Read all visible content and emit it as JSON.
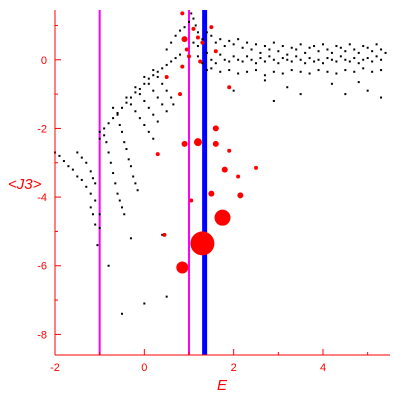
{
  "chart_data": {
    "type": "scatter",
    "xlabel": "E",
    "ylabel": "<J3>",
    "xlim": [
      -2,
      5.5
    ],
    "ylim": [
      -8.6,
      1.45
    ],
    "x_ticks": [
      -2,
      0,
      2,
      4
    ],
    "y_ticks": [
      -8,
      -6,
      -4,
      -2,
      0
    ],
    "grid": false,
    "axis_color": "#ff0000",
    "vertical_lines": [
      {
        "x": -1.0,
        "color": "#ff00ff"
      },
      {
        "x": 1.0,
        "color": "#ff00ff"
      },
      {
        "x": 1.35,
        "color": "#0000ff"
      }
    ],
    "series": [
      {
        "color": "#000000",
        "style": "dots",
        "points": [
          [
            -2.0,
            -2.7
          ],
          [
            -1.9,
            -2.8
          ],
          [
            -1.8,
            -2.95
          ],
          [
            -1.7,
            -3.1
          ],
          [
            -1.6,
            -3.2
          ],
          [
            -1.5,
            -3.4
          ],
          [
            -1.4,
            -3.5
          ],
          [
            -1.3,
            -3.7
          ],
          [
            -1.2,
            -3.9
          ],
          [
            -1.1,
            -4.1
          ],
          [
            -1.0,
            -4.5
          ],
          [
            -1.0,
            -4.9
          ],
          [
            -1.05,
            -5.4
          ],
          [
            -1.5,
            -2.7
          ],
          [
            -1.4,
            -2.85
          ],
          [
            -1.3,
            -3.0
          ],
          [
            -1.2,
            -3.25
          ],
          [
            -1.15,
            -3.45
          ],
          [
            -1.1,
            -3.6
          ],
          [
            -1.2,
            -4.3
          ],
          [
            -1.15,
            -4.5
          ],
          [
            -1.1,
            -4.8
          ],
          [
            -1.0,
            -2.1
          ],
          [
            -1.0,
            -2.3
          ],
          [
            -0.9,
            -2.2
          ],
          [
            -0.85,
            -2.4
          ],
          [
            -0.8,
            -2.7
          ],
          [
            -0.75,
            -3.0
          ],
          [
            -0.7,
            -3.3
          ],
          [
            -0.65,
            -3.6
          ],
          [
            -0.6,
            -3.9
          ],
          [
            -0.55,
            -4.1
          ],
          [
            -0.5,
            -4.3
          ],
          [
            -0.45,
            -4.5
          ],
          [
            -0.9,
            -2.0
          ],
          [
            -0.8,
            -1.85
          ],
          [
            -0.7,
            -1.7
          ],
          [
            -0.6,
            -1.55
          ],
          [
            -0.5,
            -1.4
          ],
          [
            -0.4,
            -1.25
          ],
          [
            -0.3,
            -1.1
          ],
          [
            -0.2,
            -0.95
          ],
          [
            -0.1,
            -0.85
          ],
          [
            0.0,
            -0.7
          ],
          [
            0.1,
            -0.55
          ],
          [
            0.2,
            -0.45
          ],
          [
            0.3,
            -0.35
          ],
          [
            0.4,
            -0.25
          ],
          [
            0.5,
            -0.15
          ],
          [
            0.6,
            -0.05
          ],
          [
            0.7,
            0.05
          ],
          [
            0.8,
            0.15
          ],
          [
            -0.7,
            -1.4
          ],
          [
            -0.6,
            -1.6
          ],
          [
            -0.55,
            -1.9
          ],
          [
            -0.5,
            -2.1
          ],
          [
            -0.45,
            -2.4
          ],
          [
            -0.4,
            -2.6
          ],
          [
            -0.35,
            -2.9
          ],
          [
            -0.3,
            -3.1
          ],
          [
            -0.25,
            -3.4
          ],
          [
            -0.2,
            -3.6
          ],
          [
            -0.15,
            -3.8
          ],
          [
            -0.4,
            -1.1
          ],
          [
            -0.3,
            -1.3
          ],
          [
            -0.2,
            -1.5
          ],
          [
            -0.1,
            -1.7
          ],
          [
            0.0,
            -1.9
          ],
          [
            0.1,
            -2.1
          ],
          [
            0.2,
            -2.3
          ],
          [
            -0.2,
            -0.8
          ],
          [
            -0.1,
            -1.0
          ],
          [
            0.0,
            -1.2
          ],
          [
            0.1,
            -1.4
          ],
          [
            0.2,
            -1.6
          ],
          [
            0.3,
            -1.8
          ],
          [
            0.0,
            -0.5
          ],
          [
            0.1,
            -0.7
          ],
          [
            0.2,
            -0.9
          ],
          [
            0.3,
            -1.1
          ],
          [
            0.4,
            -1.3
          ],
          [
            0.5,
            -1.5
          ],
          [
            0.2,
            -0.3
          ],
          [
            0.3,
            -0.5
          ],
          [
            0.4,
            -0.7
          ],
          [
            0.5,
            -0.9
          ],
          [
            0.6,
            -1.1
          ],
          [
            0.65,
            -1.3
          ],
          [
            -0.3,
            -5.2
          ],
          [
            -0.8,
            -6.0
          ],
          [
            -0.5,
            -7.4
          ],
          [
            0.0,
            -7.1
          ],
          [
            0.5,
            -6.9
          ],
          [
            0.4,
            -5.1
          ],
          [
            0.5,
            0.3
          ],
          [
            0.6,
            0.5
          ],
          [
            0.7,
            0.7
          ],
          [
            0.8,
            0.85
          ],
          [
            0.9,
            0.95
          ],
          [
            1.0,
            1.1
          ],
          [
            1.05,
            1.35
          ],
          [
            1.1,
            1.2
          ],
          [
            1.15,
            1.0
          ],
          [
            1.2,
            0.8
          ],
          [
            1.1,
            0.5
          ],
          [
            1.2,
            0.4
          ],
          [
            1.3,
            0.6
          ],
          [
            1.4,
            0.8
          ],
          [
            1.5,
            0.7
          ],
          [
            1.6,
            0.5
          ],
          [
            1.7,
            0.6
          ],
          [
            1.8,
            0.4
          ],
          [
            1.9,
            0.55
          ],
          [
            2.0,
            0.45
          ],
          [
            2.1,
            0.6
          ],
          [
            2.2,
            0.35
          ],
          [
            2.3,
            0.5
          ],
          [
            2.4,
            0.3
          ],
          [
            2.5,
            0.45
          ],
          [
            2.6,
            0.2
          ],
          [
            2.7,
            0.4
          ],
          [
            2.8,
            0.3
          ],
          [
            2.9,
            0.5
          ],
          [
            3.0,
            0.25
          ],
          [
            3.1,
            0.4
          ],
          [
            3.2,
            0.15
          ],
          [
            3.3,
            0.35
          ],
          [
            3.4,
            0.3
          ],
          [
            3.5,
            0.45
          ],
          [
            3.6,
            0.2
          ],
          [
            3.7,
            0.35
          ],
          [
            3.8,
            0.4
          ],
          [
            3.9,
            0.25
          ],
          [
            4.0,
            0.45
          ],
          [
            4.1,
            0.3
          ],
          [
            4.2,
            0.2
          ],
          [
            4.3,
            0.4
          ],
          [
            4.4,
            0.35
          ],
          [
            4.5,
            0.25
          ],
          [
            4.6,
            0.45
          ],
          [
            4.7,
            0.3
          ],
          [
            4.8,
            0.2
          ],
          [
            4.9,
            0.4
          ],
          [
            5.0,
            0.35
          ],
          [
            5.1,
            0.25
          ],
          [
            5.2,
            0.45
          ],
          [
            5.3,
            0.3
          ],
          [
            5.4,
            0.2
          ],
          [
            1.2,
            0.1
          ],
          [
            1.3,
            -0.1
          ],
          [
            1.4,
            0.2
          ],
          [
            1.5,
            0.0
          ],
          [
            1.6,
            -0.1
          ],
          [
            1.7,
            0.15
          ],
          [
            1.8,
            0.0
          ],
          [
            1.9,
            -0.05
          ],
          [
            2.0,
            0.1
          ],
          [
            2.1,
            0.0
          ],
          [
            2.2,
            -0.05
          ],
          [
            2.3,
            0.1
          ],
          [
            2.4,
            0.0
          ],
          [
            2.5,
            -0.1
          ],
          [
            2.6,
            0.05
          ],
          [
            2.7,
            -0.05
          ],
          [
            2.8,
            0.1
          ],
          [
            2.9,
            0.0
          ],
          [
            3.0,
            -0.1
          ],
          [
            3.1,
            0.05
          ],
          [
            3.2,
            0.0
          ],
          [
            3.3,
            -0.05
          ],
          [
            3.4,
            0.1
          ],
          [
            3.5,
            0.0
          ],
          [
            3.6,
            -0.1
          ],
          [
            3.7,
            0.05
          ],
          [
            3.8,
            -0.05
          ],
          [
            3.9,
            0.0
          ],
          [
            4.0,
            -0.1
          ],
          [
            4.1,
            0.05
          ],
          [
            4.2,
            0.0
          ],
          [
            4.3,
            -0.05
          ],
          [
            4.4,
            0.1
          ],
          [
            4.5,
            0.0
          ],
          [
            4.6,
            -0.05
          ],
          [
            4.7,
            0.05
          ],
          [
            4.8,
            -0.1
          ],
          [
            4.9,
            0.0
          ],
          [
            5.0,
            0.05
          ],
          [
            5.1,
            -0.05
          ],
          [
            5.2,
            0.1
          ],
          [
            5.3,
            0.0
          ],
          [
            1.4,
            -0.3
          ],
          [
            1.5,
            -0.25
          ],
          [
            1.7,
            -0.35
          ],
          [
            1.9,
            -0.3
          ],
          [
            2.1,
            -0.4
          ],
          [
            2.3,
            -0.35
          ],
          [
            2.5,
            -0.3
          ],
          [
            2.7,
            -0.45
          ],
          [
            2.9,
            -0.35
          ],
          [
            3.1,
            -0.4
          ],
          [
            3.3,
            -0.3
          ],
          [
            3.5,
            -0.35
          ],
          [
            3.7,
            -0.4
          ],
          [
            3.9,
            -0.3
          ],
          [
            4.1,
            -0.35
          ],
          [
            4.3,
            -0.4
          ],
          [
            4.5,
            -0.3
          ],
          [
            4.7,
            -0.35
          ],
          [
            4.9,
            -0.25
          ],
          [
            5.1,
            -0.35
          ],
          [
            5.3,
            -0.3
          ],
          [
            2.0,
            -0.9
          ],
          [
            2.9,
            -1.2
          ],
          [
            3.5,
            -1.0
          ],
          [
            4.2,
            -0.7
          ],
          [
            4.5,
            -1.0
          ],
          [
            5.0,
            -0.9
          ],
          [
            5.3,
            -1.1
          ],
          [
            2.7,
            -0.6
          ],
          [
            3.2,
            -0.8
          ],
          [
            4.8,
            -0.65
          ]
        ]
      },
      {
        "color": "#ff0000",
        "style": "bubbles",
        "points": [
          [
            0.85,
            1.35,
            2
          ],
          [
            0.9,
            0.6,
            3
          ],
          [
            0.95,
            0.3,
            2
          ],
          [
            1.0,
            0.1,
            2
          ],
          [
            0.85,
            -0.2,
            2
          ],
          [
            1.1,
            0.9,
            2
          ],
          [
            1.2,
            0.65,
            2
          ],
          [
            1.25,
            -0.05,
            2
          ],
          [
            1.3,
            0.5,
            2
          ],
          [
            1.5,
            0.95,
            2
          ],
          [
            1.6,
            0.25,
            2
          ],
          [
            0.9,
            -2.45,
            3
          ],
          [
            1.2,
            -2.4,
            4
          ],
          [
            1.6,
            -2.45,
            3
          ],
          [
            1.6,
            -2.0,
            3
          ],
          [
            1.9,
            -2.65,
            2
          ],
          [
            2.1,
            -3.4,
            2
          ],
          [
            2.5,
            -3.15,
            2
          ],
          [
            0.3,
            -2.75,
            2
          ],
          [
            0.5,
            -0.5,
            2
          ],
          [
            1.8,
            -3.2,
            3
          ],
          [
            2.15,
            -3.95,
            3
          ],
          [
            1.5,
            -3.9,
            3
          ],
          [
            1.75,
            -4.6,
            8
          ],
          [
            1.3,
            -5.35,
            12
          ],
          [
            0.85,
            -6.05,
            6
          ],
          [
            0.45,
            -5.1,
            2
          ],
          [
            1.05,
            -4.1,
            2
          ],
          [
            1.9,
            -0.8,
            2
          ],
          [
            0.8,
            -1.0,
            2
          ]
        ]
      }
    ]
  }
}
